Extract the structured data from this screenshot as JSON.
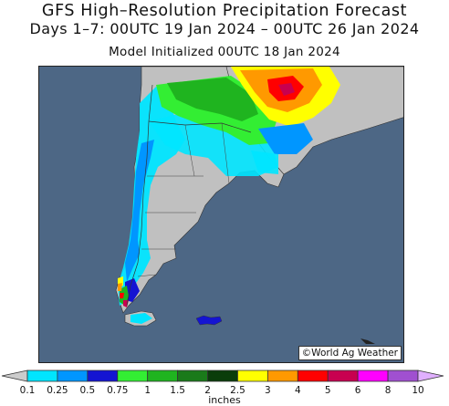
{
  "header": {
    "title": "GFS High–Resolution Precipitation Forecast",
    "period": "Days 1–7: 00UTC 19 Jan 2024 – 00UTC 26 Jan 2024",
    "init": "Model Initialized 00UTC 18 Jan 2024"
  },
  "map": {
    "credit": "©World Ag Weather",
    "ocean_color": "#4d6785",
    "land_color": "#c0c0c0"
  },
  "legend": {
    "units": "inches",
    "ticks": [
      "0.1",
      "0.25",
      "0.5",
      "0.75",
      "1",
      "1.5",
      "2",
      "2.5",
      "3",
      "4",
      "5",
      "6",
      "8",
      "10"
    ],
    "colors": [
      "#cccccc",
      "#00e5ff",
      "#0096ff",
      "#1414d2",
      "#33ee33",
      "#1fb41f",
      "#1a7a1a",
      "#0a3d0a",
      "#ffff00",
      "#ff9900",
      "#ff0000",
      "#c80050",
      "#ff00ff",
      "#a050d0",
      "#e0b0ff"
    ]
  }
}
